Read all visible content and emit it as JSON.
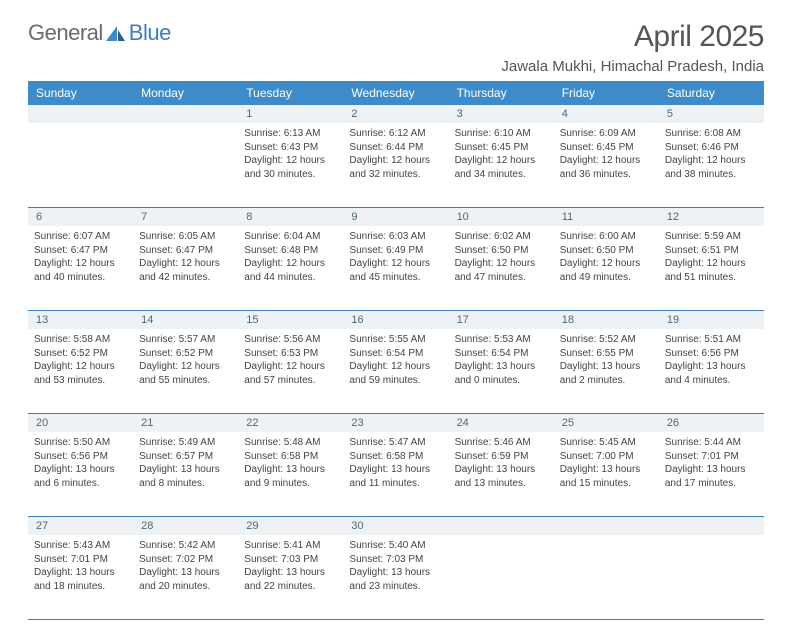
{
  "brand": {
    "part1": "General",
    "part2": "Blue"
  },
  "title": "April 2025",
  "location": "Jawala Mukhi, Himachal Pradesh, India",
  "colors": {
    "header_bg": "#3d8cc9",
    "header_text": "#ffffff",
    "daynum_bg": "#eef2f4",
    "daynum_text": "#4a6a7a",
    "cell_text": "#444444",
    "divider": "#3d7cb9",
    "brand_general": "#6b6b6b",
    "brand_blue": "#3d7cc9"
  },
  "day_headers": [
    "Sunday",
    "Monday",
    "Tuesday",
    "Wednesday",
    "Thursday",
    "Friday",
    "Saturday"
  ],
  "weeks": [
    {
      "nums": [
        "",
        "",
        "1",
        "2",
        "3",
        "4",
        "5"
      ],
      "cells": [
        null,
        null,
        {
          "sunrise": "Sunrise: 6:13 AM",
          "sunset": "Sunset: 6:43 PM",
          "daylight": "Daylight: 12 hours and 30 minutes."
        },
        {
          "sunrise": "Sunrise: 6:12 AM",
          "sunset": "Sunset: 6:44 PM",
          "daylight": "Daylight: 12 hours and 32 minutes."
        },
        {
          "sunrise": "Sunrise: 6:10 AM",
          "sunset": "Sunset: 6:45 PM",
          "daylight": "Daylight: 12 hours and 34 minutes."
        },
        {
          "sunrise": "Sunrise: 6:09 AM",
          "sunset": "Sunset: 6:45 PM",
          "daylight": "Daylight: 12 hours and 36 minutes."
        },
        {
          "sunrise": "Sunrise: 6:08 AM",
          "sunset": "Sunset: 6:46 PM",
          "daylight": "Daylight: 12 hours and 38 minutes."
        }
      ]
    },
    {
      "nums": [
        "6",
        "7",
        "8",
        "9",
        "10",
        "11",
        "12"
      ],
      "cells": [
        {
          "sunrise": "Sunrise: 6:07 AM",
          "sunset": "Sunset: 6:47 PM",
          "daylight": "Daylight: 12 hours and 40 minutes."
        },
        {
          "sunrise": "Sunrise: 6:05 AM",
          "sunset": "Sunset: 6:47 PM",
          "daylight": "Daylight: 12 hours and 42 minutes."
        },
        {
          "sunrise": "Sunrise: 6:04 AM",
          "sunset": "Sunset: 6:48 PM",
          "daylight": "Daylight: 12 hours and 44 minutes."
        },
        {
          "sunrise": "Sunrise: 6:03 AM",
          "sunset": "Sunset: 6:49 PM",
          "daylight": "Daylight: 12 hours and 45 minutes."
        },
        {
          "sunrise": "Sunrise: 6:02 AM",
          "sunset": "Sunset: 6:50 PM",
          "daylight": "Daylight: 12 hours and 47 minutes."
        },
        {
          "sunrise": "Sunrise: 6:00 AM",
          "sunset": "Sunset: 6:50 PM",
          "daylight": "Daylight: 12 hours and 49 minutes."
        },
        {
          "sunrise": "Sunrise: 5:59 AM",
          "sunset": "Sunset: 6:51 PM",
          "daylight": "Daylight: 12 hours and 51 minutes."
        }
      ]
    },
    {
      "nums": [
        "13",
        "14",
        "15",
        "16",
        "17",
        "18",
        "19"
      ],
      "cells": [
        {
          "sunrise": "Sunrise: 5:58 AM",
          "sunset": "Sunset: 6:52 PM",
          "daylight": "Daylight: 12 hours and 53 minutes."
        },
        {
          "sunrise": "Sunrise: 5:57 AM",
          "sunset": "Sunset: 6:52 PM",
          "daylight": "Daylight: 12 hours and 55 minutes."
        },
        {
          "sunrise": "Sunrise: 5:56 AM",
          "sunset": "Sunset: 6:53 PM",
          "daylight": "Daylight: 12 hours and 57 minutes."
        },
        {
          "sunrise": "Sunrise: 5:55 AM",
          "sunset": "Sunset: 6:54 PM",
          "daylight": "Daylight: 12 hours and 59 minutes."
        },
        {
          "sunrise": "Sunrise: 5:53 AM",
          "sunset": "Sunset: 6:54 PM",
          "daylight": "Daylight: 13 hours and 0 minutes."
        },
        {
          "sunrise": "Sunrise: 5:52 AM",
          "sunset": "Sunset: 6:55 PM",
          "daylight": "Daylight: 13 hours and 2 minutes."
        },
        {
          "sunrise": "Sunrise: 5:51 AM",
          "sunset": "Sunset: 6:56 PM",
          "daylight": "Daylight: 13 hours and 4 minutes."
        }
      ]
    },
    {
      "nums": [
        "20",
        "21",
        "22",
        "23",
        "24",
        "25",
        "26"
      ],
      "cells": [
        {
          "sunrise": "Sunrise: 5:50 AM",
          "sunset": "Sunset: 6:56 PM",
          "daylight": "Daylight: 13 hours and 6 minutes."
        },
        {
          "sunrise": "Sunrise: 5:49 AM",
          "sunset": "Sunset: 6:57 PM",
          "daylight": "Daylight: 13 hours and 8 minutes."
        },
        {
          "sunrise": "Sunrise: 5:48 AM",
          "sunset": "Sunset: 6:58 PM",
          "daylight": "Daylight: 13 hours and 9 minutes."
        },
        {
          "sunrise": "Sunrise: 5:47 AM",
          "sunset": "Sunset: 6:58 PM",
          "daylight": "Daylight: 13 hours and 11 minutes."
        },
        {
          "sunrise": "Sunrise: 5:46 AM",
          "sunset": "Sunset: 6:59 PM",
          "daylight": "Daylight: 13 hours and 13 minutes."
        },
        {
          "sunrise": "Sunrise: 5:45 AM",
          "sunset": "Sunset: 7:00 PM",
          "daylight": "Daylight: 13 hours and 15 minutes."
        },
        {
          "sunrise": "Sunrise: 5:44 AM",
          "sunset": "Sunset: 7:01 PM",
          "daylight": "Daylight: 13 hours and 17 minutes."
        }
      ]
    },
    {
      "nums": [
        "27",
        "28",
        "29",
        "30",
        "",
        "",
        ""
      ],
      "cells": [
        {
          "sunrise": "Sunrise: 5:43 AM",
          "sunset": "Sunset: 7:01 PM",
          "daylight": "Daylight: 13 hours and 18 minutes."
        },
        {
          "sunrise": "Sunrise: 5:42 AM",
          "sunset": "Sunset: 7:02 PM",
          "daylight": "Daylight: 13 hours and 20 minutes."
        },
        {
          "sunrise": "Sunrise: 5:41 AM",
          "sunset": "Sunset: 7:03 PM",
          "daylight": "Daylight: 13 hours and 22 minutes."
        },
        {
          "sunrise": "Sunrise: 5:40 AM",
          "sunset": "Sunset: 7:03 PM",
          "daylight": "Daylight: 13 hours and 23 minutes."
        },
        null,
        null,
        null
      ]
    }
  ]
}
